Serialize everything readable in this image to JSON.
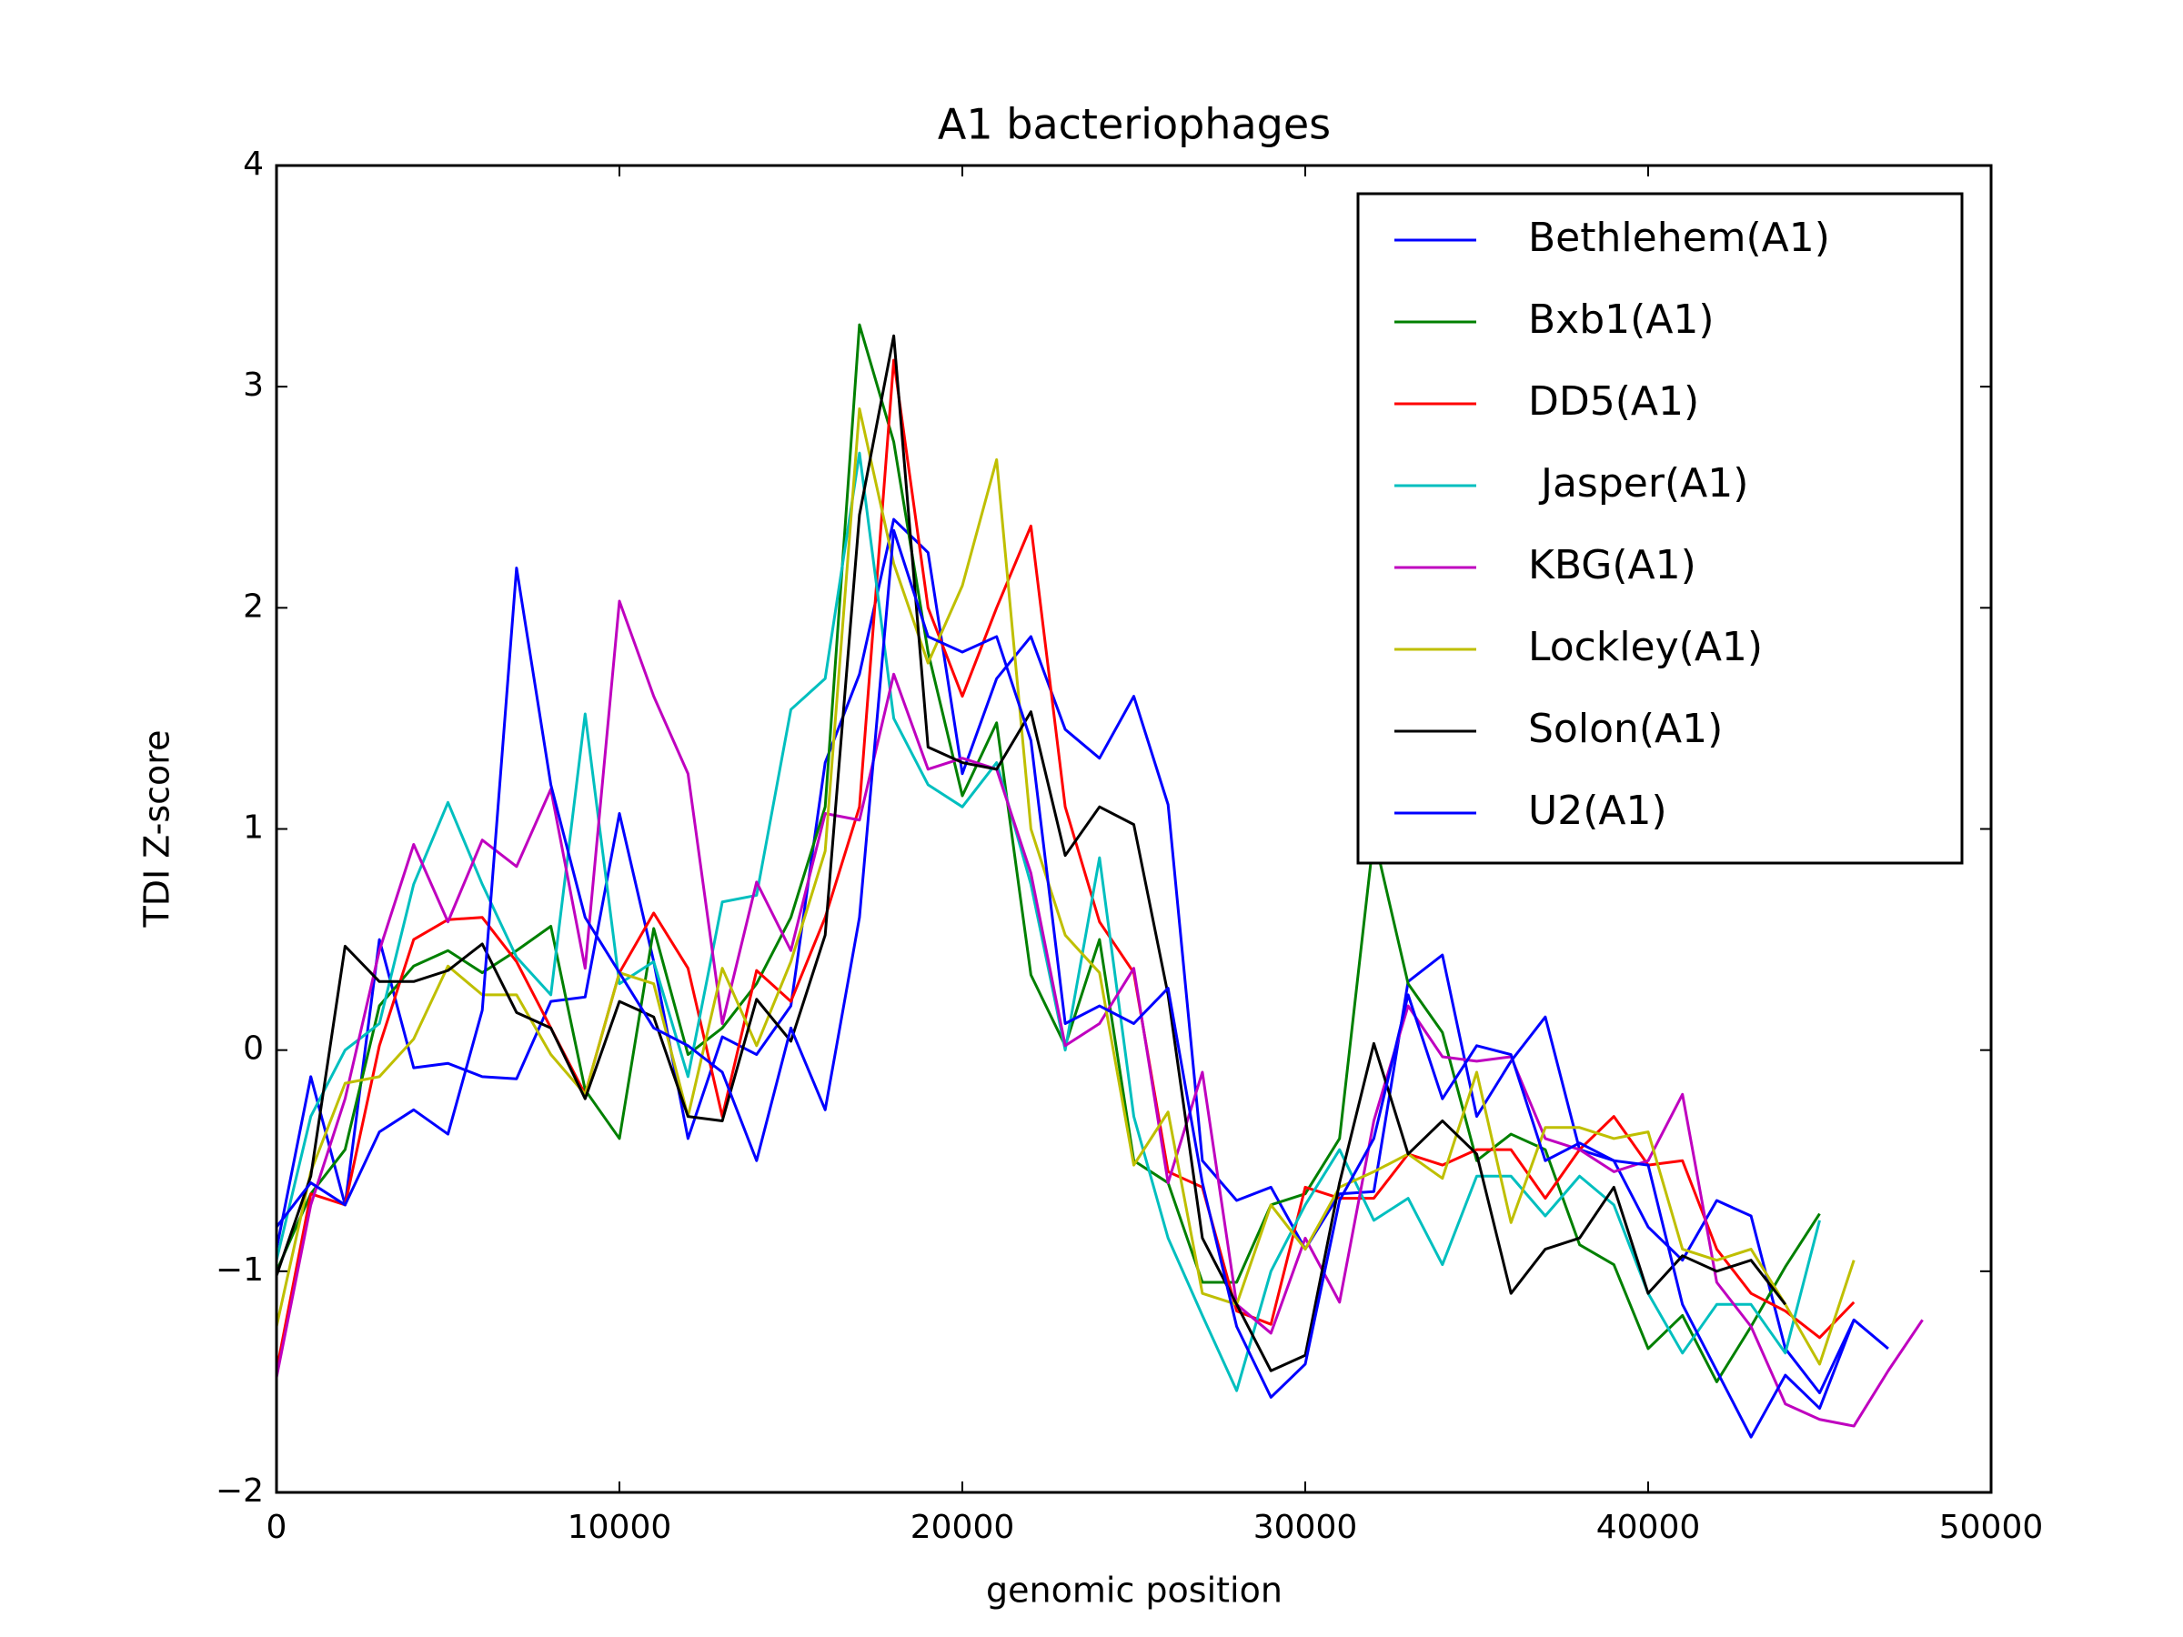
{
  "chart_data": {
    "type": "line",
    "title": "A1 bacteriophages",
    "x_label": "genomic position",
    "y_label": "TDI Z-score",
    "x": [
      0,
      1000,
      2000,
      3000,
      4000,
      5000,
      6000,
      7000,
      8000,
      9000,
      10000,
      11000,
      12000,
      13000,
      14000,
      15000,
      16000,
      17000,
      18000,
      19000,
      20000,
      21000,
      22000,
      23000,
      24000,
      25000,
      26000,
      27000,
      28000,
      29000,
      30000,
      31000,
      32000,
      33000,
      34000,
      35000,
      36000,
      37000,
      38000,
      39000,
      40000,
      41000,
      42000,
      43000,
      44000,
      45000,
      46000,
      47000,
      48000
    ],
    "xlim": [
      0,
      50000
    ],
    "xticks": [
      0,
      10000,
      20000,
      30000,
      40000,
      50000
    ],
    "ylim": [
      -2,
      4
    ],
    "yticks": [
      {
        "value": -2,
        "label": "−2"
      },
      {
        "value": -1,
        "label": "−1"
      },
      0,
      1,
      2,
      3,
      4
    ],
    "legend": "upper right",
    "series": [
      {
        "name": "Bethlehem(A1)",
        "color": "#0000ff",
        "values": [
          -0.9,
          -0.12,
          -0.7,
          0.5,
          -0.08,
          -0.06,
          -0.12,
          -0.13,
          0.22,
          0.24,
          1.07,
          0.4,
          -0.4,
          0.06,
          -0.02,
          0.2,
          1.3,
          1.7,
          2.4,
          2.25,
          1.25,
          1.68,
          1.87,
          1.45,
          1.32,
          1.6,
          1.11,
          -0.5,
          -0.68,
          -0.62,
          -0.9,
          -0.65,
          -0.64,
          0.31,
          0.43,
          -0.3,
          -0.05,
          0.15,
          -0.45,
          -0.5,
          -0.8,
          -0.95,
          -0.68,
          -0.75,
          -1.35,
          -1.55,
          -1.22,
          -1.35,
          null
        ]
      },
      {
        "name": "Bxb1(A1)",
        "color": "#008000",
        "values": [
          -1.0,
          -0.65,
          -0.45,
          0.2,
          0.38,
          0.45,
          0.35,
          0.45,
          0.56,
          -0.18,
          -0.4,
          0.55,
          -0.02,
          0.1,
          0.3,
          0.6,
          1.1,
          3.28,
          2.75,
          1.8,
          1.15,
          1.48,
          0.34,
          0.02,
          0.5,
          -0.5,
          -0.6,
          -1.05,
          -1.05,
          -0.7,
          -0.65,
          -0.4,
          0.97,
          0.3,
          0.08,
          -0.5,
          -0.38,
          -0.45,
          -0.88,
          -0.97,
          -1.35,
          -1.2,
          -1.5,
          -1.25,
          -0.98,
          -0.74,
          null,
          null,
          null
        ]
      },
      {
        "name": "DD5(A1)",
        "color": "#ff0000",
        "values": [
          -1.45,
          -0.65,
          -0.7,
          0.02,
          0.5,
          0.59,
          0.6,
          0.4,
          0.1,
          -0.2,
          0.35,
          0.62,
          0.37,
          -0.3,
          0.36,
          0.22,
          0.6,
          1.1,
          3.12,
          2.0,
          1.6,
          2.0,
          2.37,
          1.1,
          0.58,
          0.35,
          -0.55,
          -0.62,
          -1.18,
          -1.24,
          -0.62,
          -0.67,
          -0.67,
          -0.47,
          -0.52,
          -0.45,
          -0.45,
          -0.67,
          -0.45,
          -0.3,
          -0.52,
          -0.5,
          -0.9,
          -1.1,
          -1.18,
          -1.3,
          -1.14,
          null,
          null
        ]
      },
      {
        "name": " Jasper(A1)",
        "color": "#00bfbf",
        "values": [
          -0.95,
          -0.3,
          0.0,
          0.12,
          0.75,
          1.12,
          0.75,
          0.42,
          0.25,
          1.52,
          0.3,
          0.4,
          -0.12,
          0.67,
          0.7,
          1.54,
          1.68,
          2.7,
          1.5,
          1.2,
          1.1,
          1.3,
          0.75,
          0.0,
          0.87,
          -0.3,
          -0.85,
          -1.2,
          -1.54,
          -1.0,
          -0.7,
          -0.45,
          -0.77,
          -0.67,
          -0.97,
          -0.57,
          -0.57,
          -0.75,
          -0.57,
          -0.7,
          -1.1,
          -1.37,
          -1.15,
          -1.15,
          -1.37,
          -0.77,
          null,
          null,
          null
        ]
      },
      {
        "name": "KBG(A1)",
        "color": "#bf00bf",
        "values": [
          -1.48,
          -0.7,
          -0.22,
          0.45,
          0.93,
          0.58,
          0.95,
          0.83,
          1.18,
          0.37,
          2.03,
          1.6,
          1.25,
          0.12,
          0.76,
          0.45,
          1.07,
          1.04,
          1.7,
          1.27,
          1.32,
          1.27,
          0.8,
          0.02,
          0.12,
          0.37,
          -0.6,
          -0.1,
          -1.15,
          -1.28,
          -0.85,
          -1.14,
          -0.32,
          0.2,
          -0.03,
          -0.05,
          -0.03,
          -0.4,
          -0.45,
          -0.55,
          -0.5,
          -0.2,
          -1.05,
          -1.25,
          -1.6,
          -1.67,
          -1.7,
          -1.45,
          -1.22
        ]
      },
      {
        "name": "Lockley(A1)",
        "color": "#bfbf00",
        "values": [
          -1.25,
          -0.55,
          -0.15,
          -0.12,
          0.05,
          0.38,
          0.25,
          0.25,
          -0.02,
          -0.2,
          0.35,
          0.3,
          -0.3,
          0.37,
          0.02,
          0.4,
          0.9,
          2.9,
          2.2,
          1.75,
          2.1,
          2.67,
          1.0,
          0.52,
          0.35,
          -0.52,
          -0.28,
          -1.1,
          -1.15,
          -0.7,
          -0.9,
          -0.62,
          -0.55,
          -0.47,
          -0.58,
          -0.1,
          -0.78,
          -0.35,
          -0.35,
          -0.4,
          -0.37,
          -0.9,
          -0.95,
          -0.9,
          -1.15,
          -1.42,
          -0.95,
          null,
          null
        ]
      },
      {
        "name": "Solon(A1)",
        "color": "#000000",
        "values": [
          -1.02,
          -0.57,
          0.47,
          0.31,
          0.31,
          0.36,
          0.48,
          0.17,
          0.1,
          -0.22,
          0.22,
          0.15,
          -0.3,
          -0.32,
          0.23,
          0.04,
          0.52,
          2.42,
          3.23,
          1.37,
          1.3,
          1.27,
          1.53,
          0.88,
          1.1,
          1.02,
          0.25,
          -0.85,
          -1.15,
          -1.45,
          -1.38,
          -0.6,
          0.03,
          -0.47,
          -0.32,
          -0.47,
          -1.1,
          -0.9,
          -0.85,
          -0.62,
          -1.1,
          -0.93,
          -1.0,
          -0.95,
          -1.15,
          null,
          null,
          null,
          null
        ]
      },
      {
        "name": "U2(A1)",
        "color": "#0000ff",
        "values": [
          -0.8,
          -0.6,
          -0.7,
          -0.37,
          -0.27,
          -0.38,
          0.18,
          2.18,
          1.2,
          0.6,
          0.35,
          0.1,
          0.02,
          -0.1,
          -0.5,
          0.1,
          -0.27,
          0.6,
          2.35,
          1.87,
          1.8,
          1.87,
          1.4,
          0.12,
          0.2,
          0.12,
          0.28,
          -0.6,
          -1.25,
          -1.57,
          -1.42,
          -0.68,
          -0.4,
          0.25,
          -0.22,
          0.02,
          -0.02,
          -0.5,
          -0.42,
          -0.5,
          -0.52,
          -1.15,
          -1.45,
          -1.75,
          -1.47,
          -1.62,
          -1.22,
          null,
          null
        ]
      }
    ]
  }
}
